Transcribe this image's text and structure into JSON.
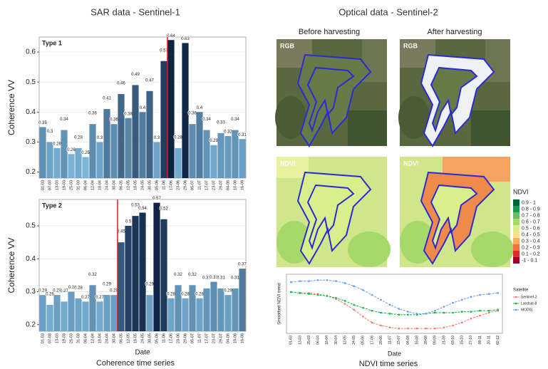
{
  "headings": {
    "sar": "SAR data - Sentinel-1",
    "optical": "Optical data - Sentinel-2",
    "before": "Before harvesting",
    "after": "After harvesting",
    "sar_caption": "Coherence time series",
    "optical_caption": "NDVI time series"
  },
  "image_labels": {
    "rgb": "RGB",
    "ndvi": "NDVI"
  },
  "ndvi_legend": {
    "title": "NDVI",
    "classes": [
      {
        "label": "0.9 - 1",
        "color": "#006837"
      },
      {
        "label": "0.8 - 0.9",
        "color": "#1a9850"
      },
      {
        "label": "0.7 - 0.8",
        "color": "#66bd63"
      },
      {
        "label": "0.6 - 0.7",
        "color": "#a6d96a"
      },
      {
        "label": "0.5 - 0.6",
        "color": "#d9ef8b"
      },
      {
        "label": "0.4 - 0.5",
        "color": "#fee08b"
      },
      {
        "label": "0.3 - 0.4",
        "color": "#fdae61"
      },
      {
        "label": "0.2 - 0.3",
        "color": "#f46d43"
      },
      {
        "label": "0.1 - 0.2",
        "color": "#d73027"
      },
      {
        "label": "-1 - 0.1",
        "color": "#a50026"
      }
    ]
  },
  "chart_data": [
    {
      "type": "bar",
      "title": "Type 1",
      "y_label": "Coherence VV",
      "categories": [
        "01-03",
        "07-03",
        "13-03",
        "19-03",
        "25-03",
        "31-03",
        "06-04",
        "12-04",
        "18-04",
        "24-04",
        "30-04",
        "06-05",
        "12-05",
        "18-05",
        "24-05",
        "30-05",
        "05-06",
        "11-06",
        "17-06",
        "23-06",
        "29-06",
        "05-07",
        "11-07",
        "17-07",
        "23-07",
        "29-07",
        "04-08",
        "10-08",
        "16-08"
      ],
      "values": [
        0.35,
        0.3,
        0.28,
        0.34,
        0.26,
        0.28,
        0.25,
        0.36,
        0.3,
        0.41,
        0.36,
        0.46,
        0.38,
        0.49,
        0.4,
        0.47,
        0.3,
        0.57,
        0.64,
        0.28,
        0.63,
        0.36,
        0.4,
        0.34,
        0.29,
        0.33,
        0.32,
        0.34,
        0.31
      ],
      "ylim": [
        0.18,
        0.65
      ],
      "yticks": [
        0.2,
        0.3,
        0.4,
        0.5,
        0.6
      ],
      "marker_category": "17-06",
      "marker_color": "#e0191b"
    },
    {
      "type": "bar",
      "title": "Type 2",
      "x_label": "Date",
      "y_label": "Coherence VV",
      "categories": [
        "01-03",
        "07-03",
        "13-03",
        "19-03",
        "25-03",
        "31-03",
        "06-04",
        "12-04",
        "18-04",
        "24-04",
        "30-04",
        "06-05",
        "12-05",
        "18-05",
        "24-05",
        "30-05",
        "05-06",
        "11-06",
        "17-06",
        "23-06",
        "29-06",
        "05-07",
        "11-07",
        "17-07",
        "23-07",
        "29-07",
        "04-08",
        "10-08",
        "16-08"
      ],
      "values": [
        0.29,
        0.26,
        0.29,
        0.27,
        0.3,
        0.28,
        0.27,
        0.32,
        0.27,
        0.29,
        0.29,
        0.45,
        0.5,
        0.53,
        0.54,
        0.29,
        0.57,
        0.52,
        0.28,
        0.32,
        0.28,
        0.32,
        0.28,
        0.31,
        0.33,
        0.31,
        0.29,
        0.31,
        0.37
      ],
      "ylim": [
        0.18,
        0.58
      ],
      "yticks": [
        0.2,
        0.3,
        0.4,
        0.5
      ],
      "marker_category": "06-05",
      "marker_color": "#e0191b"
    },
    {
      "type": "line",
      "x_label": "Date",
      "y_label": "Smoothed NDVI trend",
      "legend_title": "Satellite",
      "categories": [
        "01-03",
        "13-03",
        "25-03",
        "06-04",
        "18-04",
        "30-04",
        "12-05",
        "24-05",
        "05-06",
        "17-06",
        "29-06",
        "11-07",
        "23-07",
        "04-08",
        "16-08",
        "28-08",
        "09-09",
        "21-09",
        "03-10",
        "15-10",
        "27-10",
        "08-11",
        "20-11",
        "02-12"
      ],
      "series": [
        {
          "name": "Sentinel-2",
          "color": "#f8766d",
          "values": [
            0.62,
            0.61,
            0.61,
            0.6,
            0.58,
            0.55,
            0.5,
            0.44,
            0.37,
            0.31,
            0.28,
            0.26,
            0.25,
            0.25,
            0.25,
            0.25,
            0.25,
            0.26,
            0.28,
            0.31,
            0.35,
            0.38,
            0.41,
            0.43
          ]
        },
        {
          "name": "Landsat-8",
          "color": "#00ba38",
          "values": [
            0.62,
            0.61,
            0.6,
            0.59,
            0.58,
            0.56,
            0.53,
            0.49,
            0.46,
            0.43,
            0.41,
            0.4,
            0.39,
            0.39,
            0.39,
            0.4,
            0.41,
            0.41,
            0.41,
            0.42,
            0.42,
            0.43,
            0.43,
            0.44
          ]
        },
        {
          "name": "MODIS",
          "color": "#619cff",
          "values": [
            0.72,
            0.73,
            0.73,
            0.74,
            0.74,
            0.73,
            0.71,
            0.68,
            0.64,
            0.59,
            0.54,
            0.49,
            0.45,
            0.42,
            0.4,
            0.4,
            0.43,
            0.47,
            0.51,
            0.54,
            0.57,
            0.59,
            0.6,
            0.61
          ]
        }
      ],
      "ylim": [
        0.2,
        0.8
      ]
    }
  ]
}
